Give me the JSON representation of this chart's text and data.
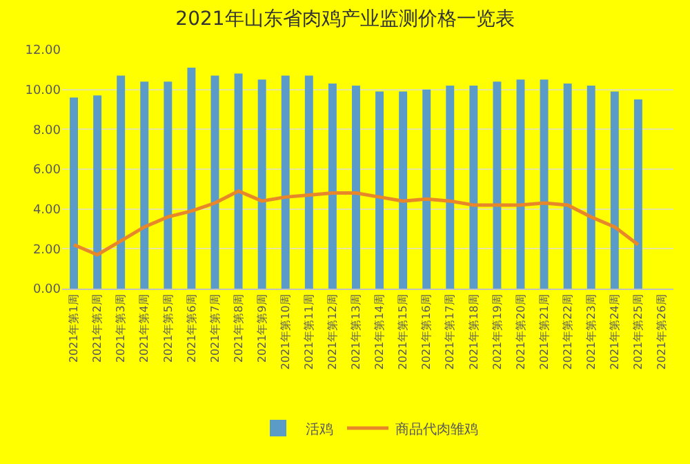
{
  "chart_data": {
    "type": "bar",
    "title": "2021年山东省肉鸡产业监测价格一览表",
    "categories": [
      "2021年第1周",
      "2021年第2周",
      "2021年第3周",
      "2021年第4周",
      "2021年第5周",
      "2021年第6周",
      "2021年第7周",
      "2021年第8周",
      "2021年第9周",
      "2021年第10周",
      "2021年第11周",
      "2021年第12周",
      "2021年第13周",
      "2021年第14周",
      "2021年第15周",
      "2021年第16周",
      "2021年第17周",
      "2021年第18周",
      "2021年第19周",
      "2021年第20周",
      "2021年第21周",
      "2021年第22周",
      "2021年第23周",
      "2021年第24周",
      "2021年第25周",
      "2021年第26周"
    ],
    "series": [
      {
        "name": "活鸡",
        "color": "#5b9bc8",
        "values": [
          9.6,
          9.7,
          10.7,
          10.4,
          10.4,
          11.1,
          10.7,
          10.8,
          10.5,
          10.7,
          10.7,
          10.3,
          10.2,
          9.9,
          9.9,
          10.0,
          10.2,
          10.2,
          10.4,
          10.5,
          10.5,
          10.3,
          10.2,
          9.9,
          9.5,
          null
        ]
      },
      {
        "name": "商品代肉雏鸡",
        "type": "line",
        "color": "#e8872a",
        "values": [
          2.2,
          1.7,
          2.4,
          3.1,
          3.6,
          3.9,
          4.3,
          4.9,
          4.4,
          4.6,
          4.7,
          4.8,
          4.8,
          4.6,
          4.4,
          4.5,
          4.4,
          4.2,
          4.2,
          4.2,
          4.3,
          4.2,
          3.6,
          3.1,
          2.2,
          null
        ]
      }
    ],
    "ylim": [
      0,
      12
    ],
    "yticks": [
      {
        "value": 0,
        "label": "0.00"
      },
      {
        "value": 2,
        "label": "2.00"
      },
      {
        "value": 4,
        "label": "4.00"
      },
      {
        "value": 6,
        "label": "6.00"
      },
      {
        "value": 8,
        "label": "8.00"
      },
      {
        "value": 10,
        "label": "10.00"
      },
      {
        "value": 12,
        "label": "12.00"
      }
    ],
    "grid": "y",
    "legend": "bottom",
    "marker": "none",
    "line_style": "solid"
  }
}
